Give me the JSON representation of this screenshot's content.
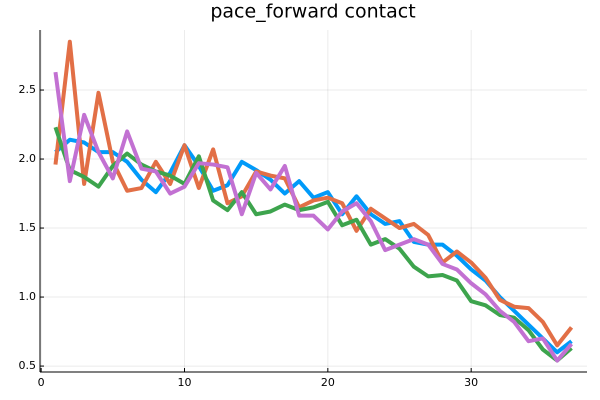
{
  "chart_data": {
    "type": "line",
    "title": "pace_forward contact",
    "x": [
      1,
      2,
      3,
      4,
      5,
      6,
      7,
      8,
      9,
      10,
      11,
      12,
      13,
      14,
      15,
      16,
      17,
      18,
      19,
      20,
      21,
      22,
      23,
      24,
      25,
      26,
      27,
      28,
      29,
      30,
      31,
      32,
      33,
      34,
      35,
      36,
      37
    ],
    "series": [
      {
        "color": "#009af9",
        "values": [
          2.05,
          2.14,
          2.12,
          2.05,
          2.05,
          1.98,
          1.85,
          1.76,
          1.9,
          2.1,
          1.95,
          1.77,
          1.81,
          1.98,
          1.92,
          1.85,
          1.75,
          1.84,
          1.72,
          1.76,
          1.6,
          1.73,
          1.6,
          1.53,
          1.55,
          1.4,
          1.38,
          1.38,
          1.3,
          1.2,
          1.12,
          1.0,
          0.9,
          0.8,
          0.7,
          0.6,
          0.68
        ]
      },
      {
        "color": "#e26f46",
        "values": [
          1.96,
          2.85,
          1.82,
          2.48,
          1.98,
          1.77,
          1.79,
          1.98,
          1.82,
          2.1,
          1.79,
          2.07,
          1.68,
          1.73,
          1.91,
          1.88,
          1.86,
          1.65,
          1.7,
          1.72,
          1.68,
          1.48,
          1.64,
          1.57,
          1.5,
          1.53,
          1.45,
          1.25,
          1.33,
          1.25,
          1.14,
          0.98,
          0.93,
          0.92,
          0.82,
          0.65,
          0.78
        ]
      },
      {
        "color": "#3da44d",
        "values": [
          2.23,
          1.92,
          1.87,
          1.8,
          1.95,
          2.04,
          1.96,
          1.91,
          1.88,
          1.82,
          2.02,
          1.7,
          1.63,
          1.76,
          1.6,
          1.62,
          1.67,
          1.63,
          1.65,
          1.69,
          1.52,
          1.56,
          1.38,
          1.42,
          1.35,
          1.22,
          1.15,
          1.16,
          1.12,
          0.97,
          0.94,
          0.87,
          0.85,
          0.76,
          0.62,
          0.54,
          0.63
        ]
      },
      {
        "color": "#c271d2",
        "values": [
          2.63,
          1.84,
          2.32,
          2.05,
          1.86,
          2.2,
          1.93,
          1.91,
          1.75,
          1.8,
          1.97,
          1.96,
          1.94,
          1.6,
          1.9,
          1.78,
          1.95,
          1.59,
          1.59,
          1.49,
          1.62,
          1.68,
          1.55,
          1.34,
          1.38,
          1.42,
          1.38,
          1.24,
          1.2,
          1.1,
          1.02,
          0.9,
          0.82,
          0.68,
          0.7,
          0.54,
          0.66
        ]
      }
    ],
    "xlim": [
      -0.08,
      38.08
    ],
    "xticks": [
      0,
      10,
      20,
      30
    ],
    "ylim": [
      0.457,
      2.935
    ],
    "yticks": [
      {
        "value": 0.5,
        "label": "0.5"
      },
      {
        "value": 1,
        "label": "1.0"
      },
      {
        "value": 1.5,
        "label": "1.5"
      },
      {
        "value": 2,
        "label": "2.0"
      },
      {
        "value": 2.5,
        "label": "2.5"
      }
    ],
    "grid": true
  }
}
